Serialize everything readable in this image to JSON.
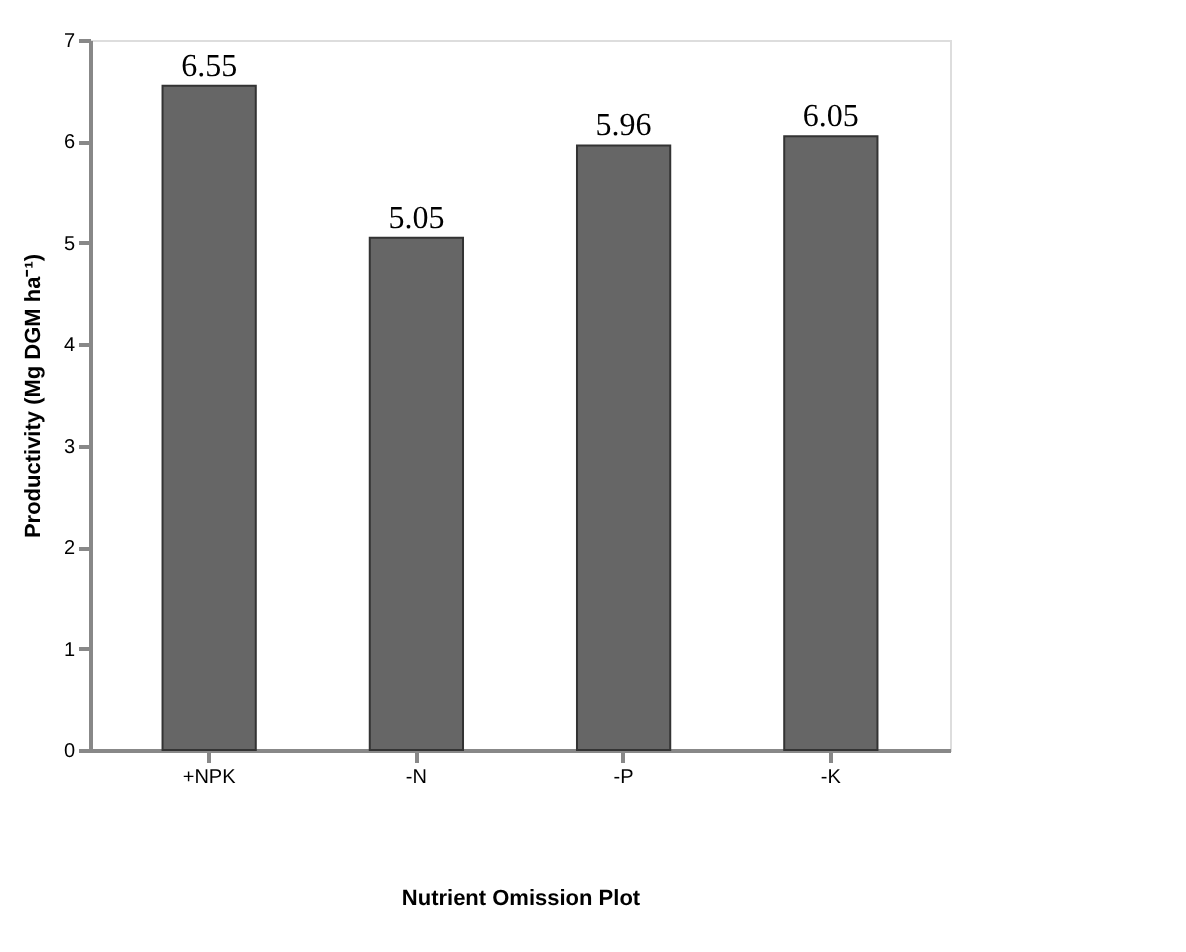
{
  "chart_data": {
    "type": "bar",
    "categories": [
      "+NPK",
      "-N",
      "-P",
      "-K"
    ],
    "values": [
      6.55,
      5.05,
      5.96,
      6.05
    ],
    "color": "#666666",
    "xlabel": "Nutrient Omission Plot",
    "ylabel": "Productivity (Mg DGM ha⁻¹)",
    "ylim": [
      0,
      7
    ],
    "yticks": [
      0,
      1,
      2,
      3,
      4,
      5,
      6,
      7
    ],
    "grid": false,
    "data_labels": true
  }
}
